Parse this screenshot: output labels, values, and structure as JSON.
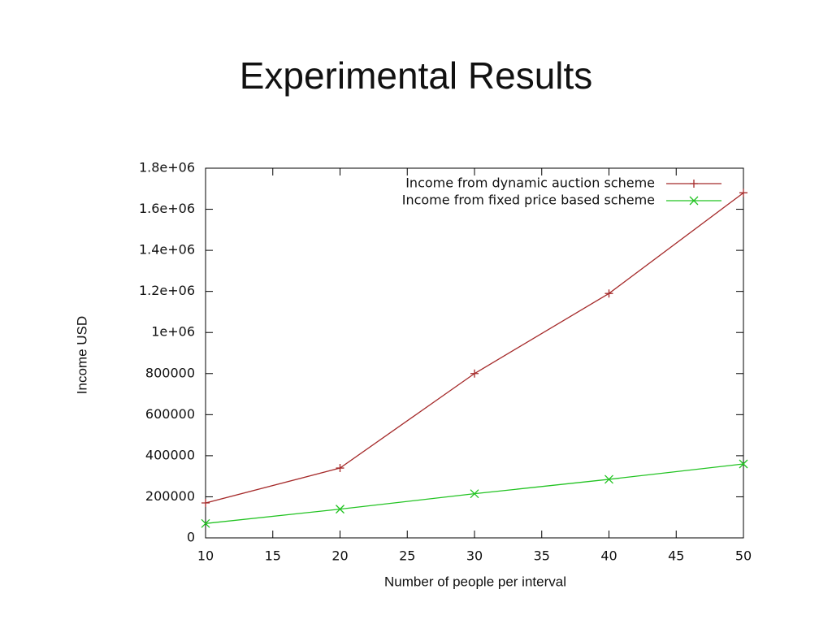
{
  "chart_data": {
    "type": "line",
    "title": "Experimental Results",
    "x_label": "Number of people per interval",
    "y_label": "Income USD",
    "x": [
      10,
      20,
      30,
      40,
      50
    ],
    "series": [
      {
        "name": "Income from dynamic auction scheme",
        "color": "#a52a2a",
        "marker": "+",
        "values": [
          170000,
          340000,
          800000,
          1190000,
          1680000
        ]
      },
      {
        "name": "Income from fixed price based scheme",
        "color": "#22c322",
        "marker": "x",
        "values": [
          70000,
          140000,
          215000,
          285000,
          360000
        ]
      }
    ],
    "xlim": [
      10,
      50
    ],
    "xticks": [
      10,
      15,
      20,
      25,
      30,
      35,
      40,
      45,
      50
    ],
    "ylim": [
      0,
      1800000
    ],
    "yticks": [
      0,
      200000,
      400000,
      600000,
      800000,
      {
        "value": 1000000,
        "label": "1e+06"
      },
      {
        "value": 1200000,
        "label": "1.2e+06"
      },
      {
        "value": 1400000,
        "label": "1.4e+06"
      },
      {
        "value": 1600000,
        "label": "1.6e+06"
      },
      {
        "value": 1800000,
        "label": "1.8e+06"
      }
    ],
    "legend": "top-right"
  }
}
